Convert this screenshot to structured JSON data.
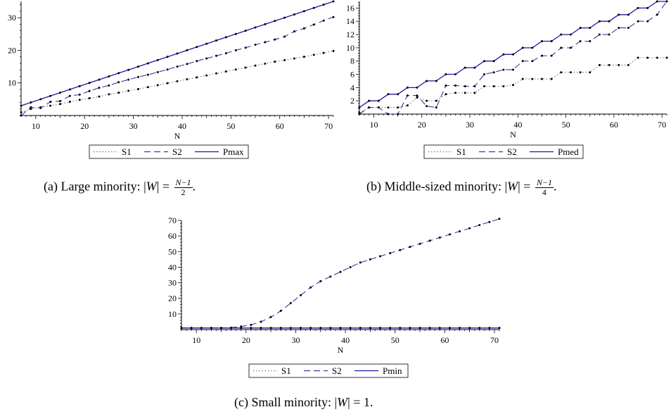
{
  "chart_data": [
    {
      "id": "a",
      "type": "line",
      "xlabel": "N",
      "ylabel": "",
      "xlim": [
        7,
        71
      ],
      "ylim": [
        0,
        35
      ],
      "xticks": [
        10,
        20,
        30,
        40,
        50,
        60,
        70
      ],
      "yticks": [
        10,
        20,
        30
      ],
      "legend": [
        "S1",
        "S2",
        "Pmax"
      ],
      "legend_position": "bottom",
      "series": [
        {
          "name": "S1",
          "style": "dotted",
          "x": [
            7,
            9,
            11,
            13,
            15,
            17,
            19,
            21,
            23,
            25,
            27,
            29,
            31,
            33,
            35,
            37,
            39,
            41,
            43,
            45,
            47,
            49,
            51,
            53,
            55,
            57,
            59,
            61,
            63,
            65,
            67,
            69,
            71
          ],
          "y": [
            1,
            2,
            2.5,
            3,
            3.5,
            4.2,
            4.8,
            5.3,
            5.8,
            6.5,
            7,
            7.6,
            8.1,
            8.7,
            9.3,
            9.9,
            10.5,
            11.1,
            11.7,
            12.3,
            12.9,
            13.5,
            14.1,
            14.7,
            15.3,
            15.9,
            16.5,
            17,
            17.5,
            18,
            18.6,
            19.2,
            19.8
          ]
        },
        {
          "name": "S2",
          "style": "dashed",
          "x": [
            7,
            9,
            11,
            13,
            15,
            17,
            19,
            21,
            23,
            25,
            27,
            29,
            31,
            33,
            35,
            37,
            39,
            41,
            43,
            45,
            47,
            49,
            51,
            53,
            55,
            57,
            59,
            61,
            63,
            65,
            67,
            69,
            71
          ],
          "y": [
            0,
            2.5,
            2.3,
            4.2,
            4.4,
            6,
            6.4,
            7.5,
            8.5,
            9.2,
            10.2,
            11,
            11.8,
            12.5,
            13.3,
            14.1,
            15,
            15.8,
            16.7,
            17.5,
            18.3,
            19.1,
            20,
            20.8,
            21.7,
            22.5,
            23.3,
            24.2,
            25.8,
            26.7,
            27.9,
            29.1,
            30.2
          ]
        },
        {
          "name": "Pmax",
          "style": "solid",
          "x": [
            7,
            9,
            11,
            13,
            15,
            17,
            19,
            21,
            23,
            25,
            27,
            29,
            31,
            33,
            35,
            37,
            39,
            41,
            43,
            45,
            47,
            49,
            51,
            53,
            55,
            57,
            59,
            61,
            63,
            65,
            67,
            69,
            71
          ],
          "y": [
            3,
            4,
            5,
            6,
            7,
            8,
            9,
            10,
            11,
            12,
            13,
            14,
            15,
            16,
            17,
            18,
            19,
            20,
            21,
            22,
            23,
            24,
            25,
            26,
            27,
            28,
            29,
            30,
            31,
            32,
            33,
            34,
            35
          ]
        }
      ]
    },
    {
      "id": "b",
      "type": "line",
      "xlabel": "N",
      "ylabel": "",
      "xlim": [
        7,
        71
      ],
      "ylim": [
        0,
        17
      ],
      "xticks": [
        10,
        20,
        30,
        40,
        50,
        60,
        70
      ],
      "yticks": [
        2,
        4,
        6,
        8,
        10,
        12,
        14,
        16
      ],
      "legend": [
        "S1",
        "S2",
        "Pmed"
      ],
      "legend_position": "bottom",
      "series": [
        {
          "name": "S1",
          "style": "dotted",
          "x": [
            7,
            9,
            11,
            13,
            15,
            17,
            19,
            21,
            23,
            25,
            27,
            29,
            31,
            33,
            35,
            37,
            39,
            41,
            43,
            45,
            47,
            49,
            51,
            53,
            55,
            57,
            59,
            61,
            63,
            65,
            67,
            69,
            71
          ],
          "y": [
            0.2,
            1,
            1,
            1,
            1,
            1.3,
            2.5,
            2,
            2,
            3,
            3.2,
            3.2,
            3.2,
            4.2,
            4.2,
            4.2,
            4.4,
            5.3,
            5.3,
            5.3,
            5.3,
            6.3,
            6.3,
            6.3,
            6.3,
            7.4,
            7.4,
            7.4,
            7.4,
            8.5,
            8.5,
            8.5,
            8.5
          ]
        },
        {
          "name": "S2",
          "style": "dashed",
          "x": [
            7,
            9,
            11,
            13,
            15,
            17,
            19,
            21,
            23,
            25,
            27,
            29,
            31,
            33,
            35,
            37,
            39,
            41,
            43,
            45,
            47,
            49,
            51,
            53,
            55,
            57,
            59,
            61,
            63,
            65,
            67,
            69,
            71
          ],
          "y": [
            0,
            1,
            1,
            0,
            0,
            2.8,
            2.8,
            1.2,
            1,
            4.3,
            4.3,
            4.2,
            4.2,
            6,
            6.3,
            6.7,
            6.7,
            8,
            8,
            8.8,
            8.8,
            10,
            10,
            11,
            11,
            12,
            12,
            13,
            13,
            14,
            14,
            15,
            17
          ]
        },
        {
          "name": "Pmed",
          "style": "solid",
          "x": [
            7,
            9,
            11,
            13,
            15,
            17,
            19,
            21,
            23,
            25,
            27,
            29,
            31,
            33,
            35,
            37,
            39,
            41,
            43,
            45,
            47,
            49,
            51,
            53,
            55,
            57,
            59,
            61,
            63,
            65,
            67,
            69,
            71
          ],
          "y": [
            1,
            2,
            2,
            3,
            3,
            4,
            4,
            5,
            5,
            6,
            6,
            7,
            7,
            8,
            8,
            9,
            9,
            10,
            10,
            11,
            11,
            12,
            12,
            13,
            13,
            14,
            14,
            15,
            15,
            16,
            16,
            17,
            17
          ]
        }
      ]
    },
    {
      "id": "c",
      "type": "line",
      "xlabel": "N",
      "ylabel": "",
      "xlim": [
        7,
        71
      ],
      "ylim": [
        0,
        70
      ],
      "xticks": [
        10,
        20,
        30,
        40,
        50,
        60,
        70
      ],
      "yticks": [
        10,
        20,
        30,
        40,
        50,
        60,
        70
      ],
      "legend": [
        "S1",
        "S2",
        "Pmin"
      ],
      "legend_position": "bottom",
      "series": [
        {
          "name": "S1",
          "style": "dotted",
          "x": [
            7,
            9,
            11,
            13,
            15,
            17,
            19,
            21,
            23,
            25,
            27,
            29,
            31,
            33,
            35,
            37,
            39,
            41,
            43,
            45,
            47,
            49,
            51,
            53,
            55,
            57,
            59,
            61,
            63,
            65,
            67,
            69,
            71
          ],
          "y": [
            1,
            1,
            1,
            1,
            1,
            1,
            1,
            1,
            1,
            1,
            1,
            1,
            1,
            1,
            1,
            1,
            1,
            1,
            1,
            1,
            1,
            1,
            1,
            1,
            1,
            1,
            1,
            1,
            1,
            1,
            1,
            1,
            1
          ]
        },
        {
          "name": "S2",
          "style": "dashed",
          "x": [
            7,
            9,
            11,
            13,
            15,
            17,
            19,
            21,
            23,
            25,
            27,
            29,
            31,
            33,
            35,
            37,
            39,
            41,
            43,
            45,
            47,
            49,
            51,
            53,
            55,
            57,
            59,
            61,
            63,
            65,
            67,
            69,
            71
          ],
          "y": [
            1,
            1,
            1,
            1,
            1,
            1.2,
            2,
            3,
            5,
            8,
            12,
            17,
            22,
            27,
            31,
            34,
            37,
            40,
            43,
            45,
            47,
            49,
            51,
            53,
            55,
            57,
            59,
            61,
            63,
            65,
            67,
            69,
            71
          ]
        },
        {
          "name": "Pmin",
          "style": "solid",
          "x": [
            7,
            9,
            11,
            13,
            15,
            17,
            19,
            21,
            23,
            25,
            27,
            29,
            31,
            33,
            35,
            37,
            39,
            41,
            43,
            45,
            47,
            49,
            51,
            53,
            55,
            57,
            59,
            61,
            63,
            65,
            67,
            69,
            71
          ],
          "y": [
            1,
            1,
            1,
            1,
            1,
            1,
            1,
            1,
            1,
            1,
            1,
            1,
            1,
            1,
            1,
            1,
            1,
            1,
            1,
            1,
            1,
            1,
            1,
            1,
            1,
            1,
            1,
            1,
            1,
            1,
            1,
            1,
            1
          ]
        }
      ]
    }
  ],
  "captions": {
    "a": {
      "prefix": "(a) Large minority: |",
      "var": "W",
      "mid": "| = ",
      "num": "N−1",
      "den": "2",
      "suffix": "."
    },
    "b": {
      "prefix": "(b) Middle-sized minority: |",
      "var": "W",
      "mid": "| = ",
      "num": "N−1",
      "den": "4",
      "suffix": "."
    },
    "c": {
      "prefix": "(c) Small minority: |",
      "var": "W",
      "mid": "| = 1."
    }
  },
  "colors": {
    "axis": "#000000",
    "dotted": "#555555",
    "dashed": "#3a3aa8",
    "solid": "#1a1aa6",
    "marker": "#000000"
  }
}
